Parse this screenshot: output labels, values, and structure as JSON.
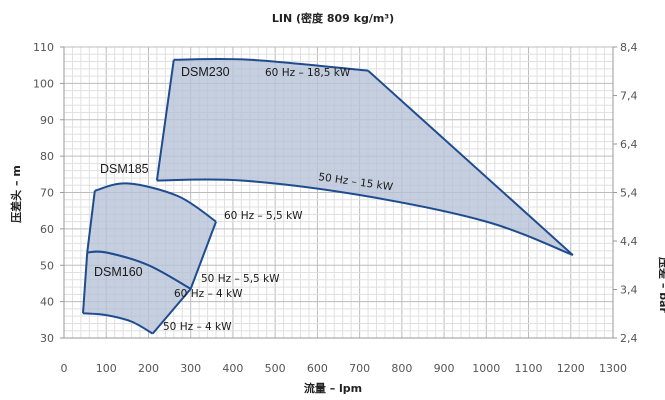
{
  "chart_data": {
    "type": "area",
    "title": "LIN (密度 809 kg/m³)",
    "xlabel": "流量 – lpm",
    "ylabel": "压差头 – m",
    "y2label": "压差 – bar",
    "xlim": [
      0,
      1300
    ],
    "ylim": [
      30,
      110
    ],
    "y2lim": [
      2.4,
      8.4
    ],
    "x_ticks": [
      "0",
      "100",
      "200",
      "300",
      "400",
      "500",
      "600",
      "700",
      "800",
      "900",
      "1000",
      "1100",
      "1200",
      "1300"
    ],
    "y_ticks": [
      "30",
      "40",
      "50",
      "60",
      "70",
      "80",
      "90",
      "100",
      "110"
    ],
    "y2_ticks": [
      "2,4",
      "3,4",
      "4,4",
      "5,4",
      "6,4",
      "7,4",
      "8,4"
    ],
    "grid": true,
    "fill_color": "#b5c2d6",
    "line_color": "#1f4c8f",
    "series": [
      {
        "name": "DSM230",
        "curves": [
          {
            "label": "60 Hz – 18,5 kW",
            "points": [
              [
                260,
                106.5
              ],
              [
                440,
                106.5
              ],
              [
                720,
                103.5
              ]
            ]
          },
          {
            "label": "50 Hz – 15 kW",
            "points": [
              [
                220,
                73.3
              ],
              [
                420,
                73.3
              ],
              [
                700,
                69.3
              ],
              [
                1000,
                62.0
              ],
              [
                1205,
                52.8
              ]
            ]
          }
        ]
      },
      {
        "name": "DSM185",
        "curves": [
          {
            "label": "60 Hz – 5,5 kW",
            "points": [
              [
                73,
                70.5
              ],
              [
                150,
                72.5
              ],
              [
                270,
                69.0
              ],
              [
                360,
                62.0
              ]
            ]
          },
          {
            "label": "50 Hz – 5,5 kW",
            "points": [
              [
                55,
                53.5
              ],
              [
                100,
                53.5
              ],
              [
                200,
                50.0
              ],
              [
                300,
                43.5
              ]
            ]
          }
        ]
      },
      {
        "name": "DSM160",
        "curves": [
          {
            "label": "60 Hz – 4 kW",
            "points": [
              [
                55,
                53.5
              ],
              [
                100,
                53.5
              ],
              [
                200,
                50.0
              ],
              [
                300,
                43.5
              ]
            ]
          },
          {
            "label": "50 Hz – 4 kW",
            "points": [
              [
                45,
                36.8
              ],
              [
                100,
                36.3
              ],
              [
                160,
                34.5
              ],
              [
                210,
                31.2
              ]
            ]
          }
        ]
      }
    ]
  }
}
